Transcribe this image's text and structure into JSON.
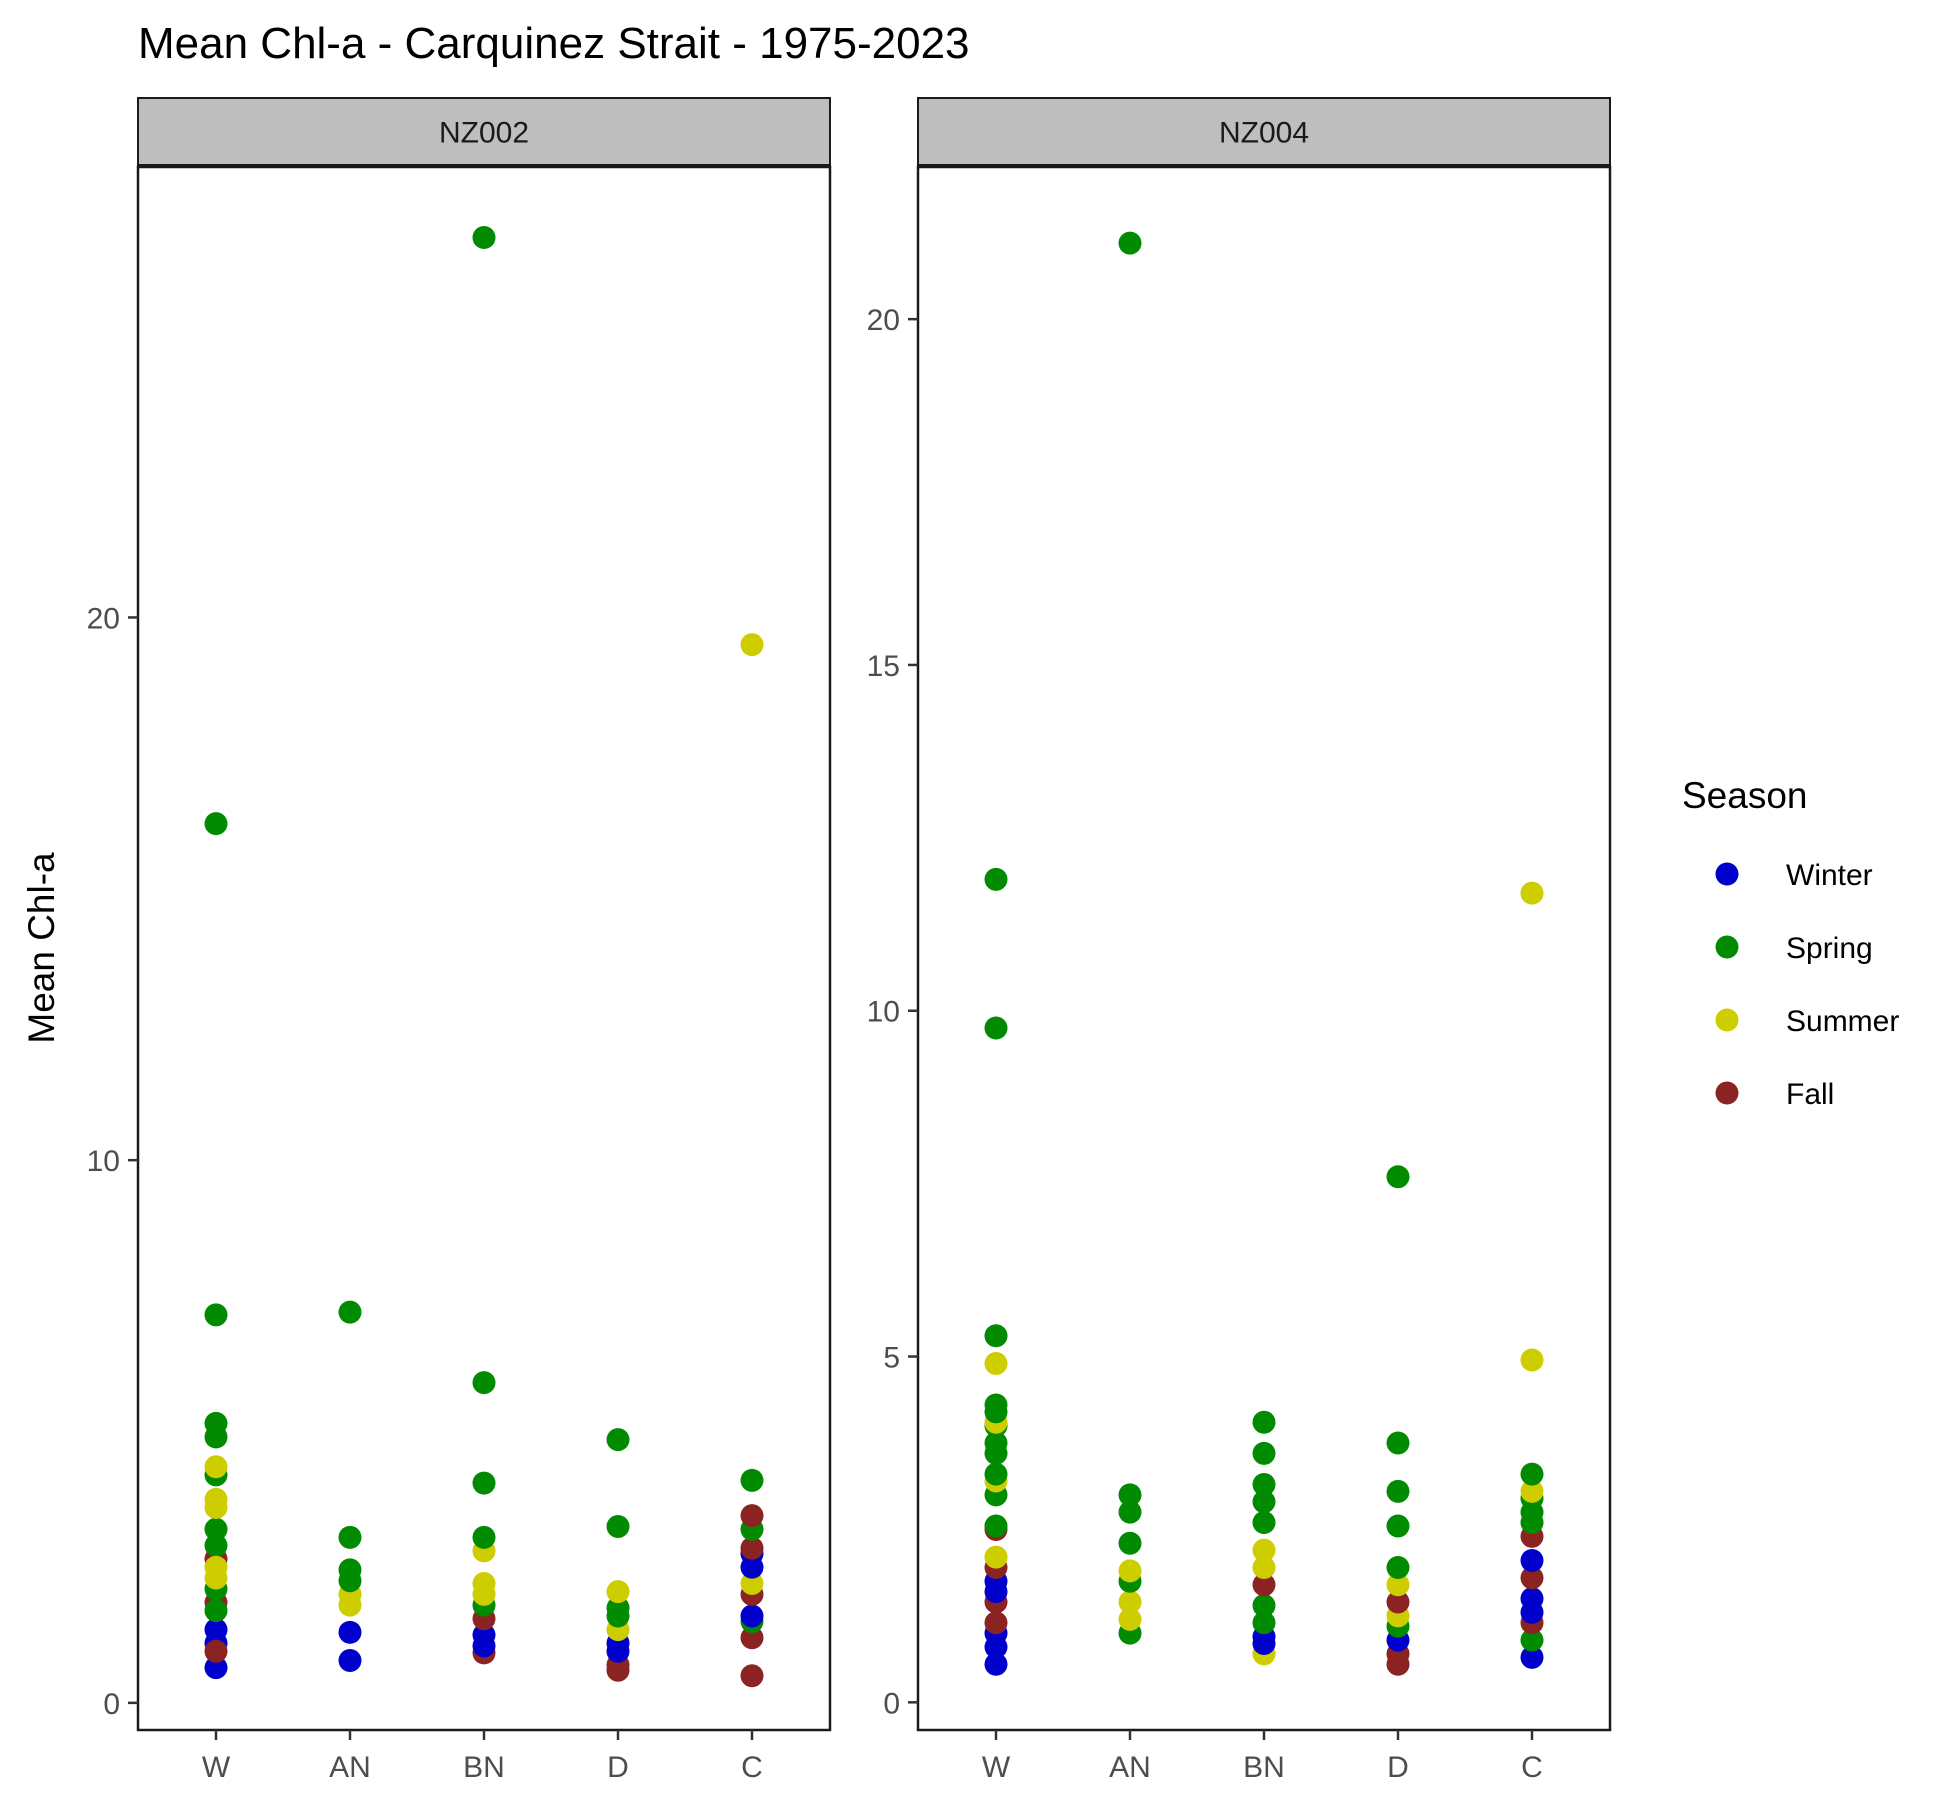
{
  "chart_data": {
    "type": "scatter",
    "title": "Mean Chl-a - Carquinez Strait - 1975-2023",
    "ylabel": "Mean Chl-a",
    "xlabel": "",
    "categories": [
      "W",
      "AN",
      "BN",
      "D",
      "C"
    ],
    "legend": {
      "title": "Season",
      "position": "right",
      "items": [
        {
          "name": "Winter",
          "color": "#0000CD"
        },
        {
          "name": "Spring",
          "color": "#008B00"
        },
        {
          "name": "Summer",
          "color": "#CDCD00"
        },
        {
          "name": "Fall",
          "color": "#8B2323"
        }
      ]
    },
    "grid": false,
    "panels": [
      {
        "strip": "NZ002",
        "ylim": [
          -0.5,
          28.3
        ],
        "yticks": [
          0,
          10,
          20
        ],
        "points": [
          {
            "x": "W",
            "season": "Winter",
            "y": 0.65
          },
          {
            "x": "W",
            "season": "Winter",
            "y": 1.1
          },
          {
            "x": "W",
            "season": "Winter",
            "y": 1.35
          },
          {
            "x": "W",
            "season": "Fall",
            "y": 0.95
          },
          {
            "x": "W",
            "season": "Fall",
            "y": 1.85
          },
          {
            "x": "W",
            "season": "Fall",
            "y": 2.65
          },
          {
            "x": "W",
            "season": "Spring",
            "y": 1.7
          },
          {
            "x": "W",
            "season": "Spring",
            "y": 2.1
          },
          {
            "x": "W",
            "season": "Spring",
            "y": 2.9
          },
          {
            "x": "W",
            "season": "Spring",
            "y": 3.2
          },
          {
            "x": "W",
            "season": "Spring",
            "y": 4.2
          },
          {
            "x": "W",
            "season": "Spring",
            "y": 4.9
          },
          {
            "x": "W",
            "season": "Spring",
            "y": 5.15
          },
          {
            "x": "W",
            "season": "Spring",
            "y": 7.15
          },
          {
            "x": "W",
            "season": "Spring",
            "y": 16.2
          },
          {
            "x": "W",
            "season": "Summer",
            "y": 2.3
          },
          {
            "x": "W",
            "season": "Summer",
            "y": 2.5
          },
          {
            "x": "W",
            "season": "Summer",
            "y": 3.6
          },
          {
            "x": "W",
            "season": "Summer",
            "y": 3.75
          },
          {
            "x": "W",
            "season": "Summer",
            "y": 4.35
          },
          {
            "x": "AN",
            "season": "Winter",
            "y": 0.78
          },
          {
            "x": "AN",
            "season": "Winter",
            "y": 1.3
          },
          {
            "x": "AN",
            "season": "Summer",
            "y": 1.8
          },
          {
            "x": "AN",
            "season": "Summer",
            "y": 2.0
          },
          {
            "x": "AN",
            "season": "Spring",
            "y": 2.25
          },
          {
            "x": "AN",
            "season": "Spring",
            "y": 2.45
          },
          {
            "x": "AN",
            "season": "Spring",
            "y": 3.05
          },
          {
            "x": "AN",
            "season": "Spring",
            "y": 7.2
          },
          {
            "x": "BN",
            "season": "Fall",
            "y": 0.92
          },
          {
            "x": "BN",
            "season": "Winter",
            "y": 1.05
          },
          {
            "x": "BN",
            "season": "Winter",
            "y": 1.25
          },
          {
            "x": "BN",
            "season": "Fall",
            "y": 1.55
          },
          {
            "x": "BN",
            "season": "Spring",
            "y": 1.8
          },
          {
            "x": "BN",
            "season": "Summer",
            "y": 2.0
          },
          {
            "x": "BN",
            "season": "Summer",
            "y": 2.2
          },
          {
            "x": "BN",
            "season": "Summer",
            "y": 2.8
          },
          {
            "x": "BN",
            "season": "Spring",
            "y": 3.05
          },
          {
            "x": "BN",
            "season": "Spring",
            "y": 4.05
          },
          {
            "x": "BN",
            "season": "Spring",
            "y": 5.9
          },
          {
            "x": "BN",
            "season": "Spring",
            "y": 27.0
          },
          {
            "x": "D",
            "season": "Fall",
            "y": 0.6
          },
          {
            "x": "D",
            "season": "Fall",
            "y": 0.7
          },
          {
            "x": "D",
            "season": "Winter",
            "y": 0.95
          },
          {
            "x": "D",
            "season": "Winter",
            "y": 1.1
          },
          {
            "x": "D",
            "season": "Summer",
            "y": 1.35
          },
          {
            "x": "D",
            "season": "Spring",
            "y": 1.6
          },
          {
            "x": "D",
            "season": "Spring",
            "y": 1.75
          },
          {
            "x": "D",
            "season": "Summer",
            "y": 2.05
          },
          {
            "x": "D",
            "season": "Spring",
            "y": 3.25
          },
          {
            "x": "D",
            "season": "Spring",
            "y": 4.85
          },
          {
            "x": "C",
            "season": "Fall",
            "y": 0.5
          },
          {
            "x": "C",
            "season": "Fall",
            "y": 1.2
          },
          {
            "x": "C",
            "season": "Spring",
            "y": 1.5
          },
          {
            "x": "C",
            "season": "Winter",
            "y": 1.6
          },
          {
            "x": "C",
            "season": "Fall",
            "y": 2.0
          },
          {
            "x": "C",
            "season": "Summer",
            "y": 2.2
          },
          {
            "x": "C",
            "season": "Winter",
            "y": 2.5
          },
          {
            "x": "C",
            "season": "Winter",
            "y": 2.75
          },
          {
            "x": "C",
            "season": "Fall",
            "y": 2.85
          },
          {
            "x": "C",
            "season": "Spring",
            "y": 3.2
          },
          {
            "x": "C",
            "season": "Fall",
            "y": 3.45
          },
          {
            "x": "C",
            "season": "Spring",
            "y": 4.1
          },
          {
            "x": "C",
            "season": "Summer",
            "y": 19.5
          }
        ]
      },
      {
        "strip": "NZ004",
        "ylim": [
          -0.4,
          22.2
        ],
        "yticks": [
          0,
          5,
          10,
          15,
          20
        ],
        "points": [
          {
            "x": "W",
            "season": "Winter",
            "y": 0.55
          },
          {
            "x": "W",
            "season": "Winter",
            "y": 0.8
          },
          {
            "x": "W",
            "season": "Winter",
            "y": 1.0
          },
          {
            "x": "W",
            "season": "Fall",
            "y": 1.15
          },
          {
            "x": "W",
            "season": "Fall",
            "y": 1.45
          },
          {
            "x": "W",
            "season": "Winter",
            "y": 1.6
          },
          {
            "x": "W",
            "season": "Winter",
            "y": 1.75
          },
          {
            "x": "W",
            "season": "Fall",
            "y": 1.95
          },
          {
            "x": "W",
            "season": "Summer",
            "y": 2.1
          },
          {
            "x": "W",
            "season": "Fall",
            "y": 2.5
          },
          {
            "x": "W",
            "season": "Spring",
            "y": 2.55
          },
          {
            "x": "W",
            "season": "Spring",
            "y": 3.0
          },
          {
            "x": "W",
            "season": "Summer",
            "y": 3.2
          },
          {
            "x": "W",
            "season": "Spring",
            "y": 3.3
          },
          {
            "x": "W",
            "season": "Spring",
            "y": 3.6
          },
          {
            "x": "W",
            "season": "Spring",
            "y": 3.75
          },
          {
            "x": "W",
            "season": "Spring",
            "y": 4.0
          },
          {
            "x": "W",
            "season": "Summer",
            "y": 4.05
          },
          {
            "x": "W",
            "season": "Spring",
            "y": 4.2
          },
          {
            "x": "W",
            "season": "Spring",
            "y": 4.3
          },
          {
            "x": "W",
            "season": "Summer",
            "y": 4.9
          },
          {
            "x": "W",
            "season": "Spring",
            "y": 5.3
          },
          {
            "x": "W",
            "season": "Spring",
            "y": 9.75
          },
          {
            "x": "W",
            "season": "Spring",
            "y": 11.9
          },
          {
            "x": "AN",
            "season": "Spring",
            "y": 1.0
          },
          {
            "x": "AN",
            "season": "Summer",
            "y": 1.2
          },
          {
            "x": "AN",
            "season": "Summer",
            "y": 1.45
          },
          {
            "x": "AN",
            "season": "Spring",
            "y": 1.75
          },
          {
            "x": "AN",
            "season": "Summer",
            "y": 1.9
          },
          {
            "x": "AN",
            "season": "Spring",
            "y": 2.3
          },
          {
            "x": "AN",
            "season": "Spring",
            "y": 2.75
          },
          {
            "x": "AN",
            "season": "Spring",
            "y": 3.0
          },
          {
            "x": "AN",
            "season": "Spring",
            "y": 21.1
          },
          {
            "x": "BN",
            "season": "Summer",
            "y": 0.7
          },
          {
            "x": "BN",
            "season": "Winter",
            "y": 0.85
          },
          {
            "x": "BN",
            "season": "Winter",
            "y": 0.95
          },
          {
            "x": "BN",
            "season": "Spring",
            "y": 1.15
          },
          {
            "x": "BN",
            "season": "Spring",
            "y": 1.4
          },
          {
            "x": "BN",
            "season": "Fall",
            "y": 1.7
          },
          {
            "x": "BN",
            "season": "Summer",
            "y": 1.95
          },
          {
            "x": "BN",
            "season": "Summer",
            "y": 2.2
          },
          {
            "x": "BN",
            "season": "Spring",
            "y": 2.6
          },
          {
            "x": "BN",
            "season": "Spring",
            "y": 2.9
          },
          {
            "x": "BN",
            "season": "Spring",
            "y": 3.15
          },
          {
            "x": "BN",
            "season": "Spring",
            "y": 3.6
          },
          {
            "x": "BN",
            "season": "Spring",
            "y": 4.05
          },
          {
            "x": "D",
            "season": "Fall",
            "y": 0.55
          },
          {
            "x": "D",
            "season": "Fall",
            "y": 0.7
          },
          {
            "x": "D",
            "season": "Winter",
            "y": 0.9
          },
          {
            "x": "D",
            "season": "Spring",
            "y": 1.1
          },
          {
            "x": "D",
            "season": "Summer",
            "y": 1.25
          },
          {
            "x": "D",
            "season": "Fall",
            "y": 1.45
          },
          {
            "x": "D",
            "season": "Summer",
            "y": 1.7
          },
          {
            "x": "D",
            "season": "Spring",
            "y": 1.95
          },
          {
            "x": "D",
            "season": "Spring",
            "y": 2.55
          },
          {
            "x": "D",
            "season": "Spring",
            "y": 3.05
          },
          {
            "x": "D",
            "season": "Spring",
            "y": 3.75
          },
          {
            "x": "D",
            "season": "Spring",
            "y": 7.6
          },
          {
            "x": "C",
            "season": "Winter",
            "y": 0.65
          },
          {
            "x": "C",
            "season": "Spring",
            "y": 0.9
          },
          {
            "x": "C",
            "season": "Fall",
            "y": 1.15
          },
          {
            "x": "C",
            "season": "Winter",
            "y": 1.3
          },
          {
            "x": "C",
            "season": "Winter",
            "y": 1.5
          },
          {
            "x": "C",
            "season": "Fall",
            "y": 1.8
          },
          {
            "x": "C",
            "season": "Winter",
            "y": 2.05
          },
          {
            "x": "C",
            "season": "Fall",
            "y": 2.4
          },
          {
            "x": "C",
            "season": "Spring",
            "y": 2.6
          },
          {
            "x": "C",
            "season": "Spring",
            "y": 2.75
          },
          {
            "x": "C",
            "season": "Spring",
            "y": 2.95
          },
          {
            "x": "C",
            "season": "Summer",
            "y": 3.05
          },
          {
            "x": "C",
            "season": "Spring",
            "y": 3.3
          },
          {
            "x": "C",
            "season": "Summer",
            "y": 4.95
          },
          {
            "x": "C",
            "season": "Summer",
            "y": 11.7
          }
        ]
      }
    ]
  }
}
